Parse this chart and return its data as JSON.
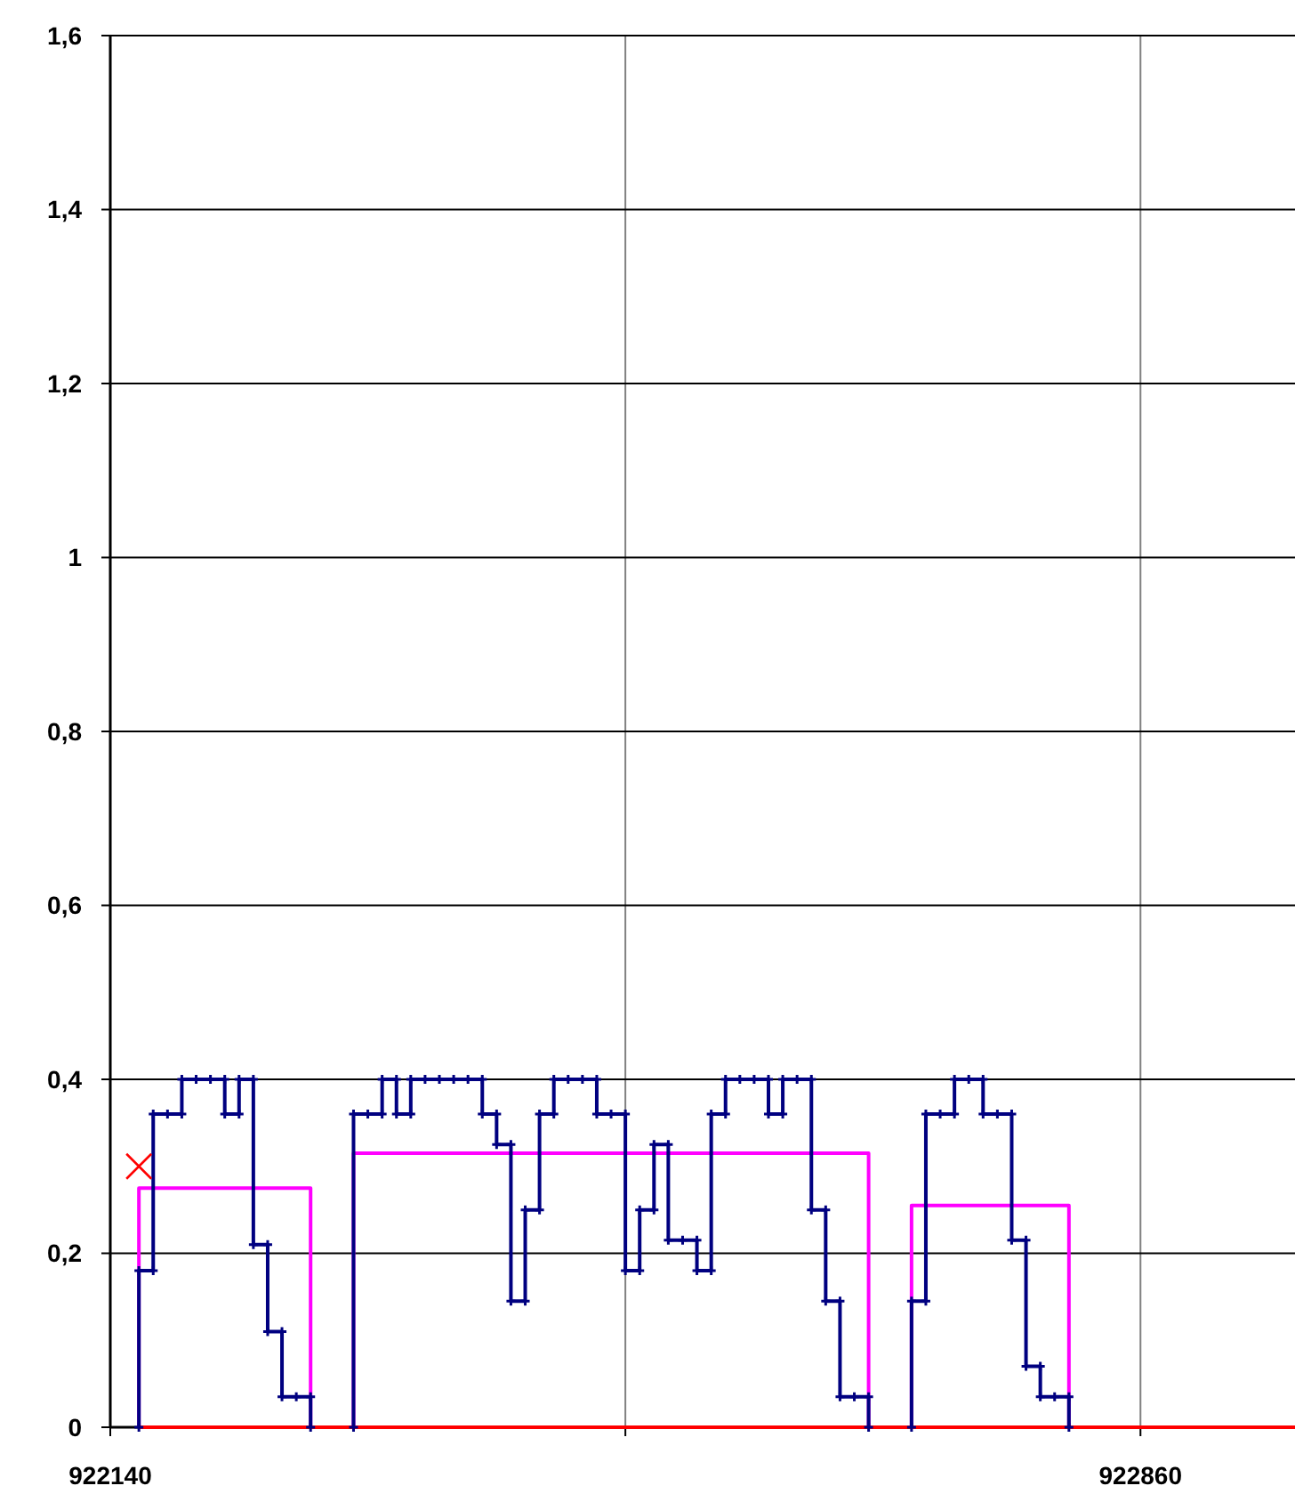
{
  "chart_data": {
    "type": "line",
    "xlim": [
      922140,
      922968
    ],
    "xticks": [
      922140,
      {
        "value": 922500,
        "label": null
      },
      922860
    ],
    "ylim": [
      0,
      1.6
    ],
    "yticks": [
      0,
      {
        "value": 0.2,
        "label": "0,2"
      },
      {
        "value": 0.4,
        "label": "0,4"
      },
      {
        "value": 0.6,
        "label": "0,6"
      },
      {
        "value": 0.8,
        "label": "0,8"
      },
      1,
      {
        "value": 1.2,
        "label": "1,2"
      },
      {
        "value": 1.4,
        "label": "1,4"
      },
      {
        "value": 1.6,
        "label": "1,6"
      }
    ],
    "grid": true,
    "series": [
      {
        "color": "#ff00ff",
        "marker": "none",
        "x": [
          922160,
          922160,
          922280,
          922280,
          922310,
          922310,
          922670,
          922670,
          922700,
          922700,
          922810,
          922810
        ],
        "values": [
          0,
          0.275,
          0.275,
          0,
          0,
          0.315,
          0.315,
          0,
          0,
          0.255,
          0.255,
          0
        ]
      },
      {
        "color": "#ff0000",
        "marker": "none",
        "x": [
          922160,
          922968
        ],
        "values": [
          0,
          0
        ]
      },
      {
        "color": "#000080",
        "marker": "cross",
        "x": [
          922160,
          922160,
          922170,
          922170,
          922180,
          922190,
          922190,
          922200,
          922210,
          922220,
          922220,
          922230,
          922230,
          922240,
          922240,
          922250,
          922250,
          922260,
          922260,
          922270,
          922280,
          922280,
          922295,
          922310,
          922310,
          922320,
          922330,
          922330,
          922340,
          922340,
          922350,
          922350,
          922360,
          922370,
          922380,
          922390,
          922400,
          922400,
          922410,
          922410,
          922420,
          922420,
          922430,
          922430,
          922440,
          922440,
          922450,
          922450,
          922460,
          922470,
          922480,
          922480,
          922490,
          922500,
          922500,
          922510,
          922510,
          922520,
          922520,
          922530,
          922530,
          922540,
          922550,
          922550,
          922560,
          922560,
          922570,
          922570,
          922580,
          922590,
          922600,
          922600,
          922610,
          922610,
          922620,
          922630,
          922630,
          922640,
          922640,
          922650,
          922650,
          922660,
          922670,
          922670,
          922685,
          922700,
          922700,
          922710,
          922710,
          922720,
          922730,
          922730,
          922740,
          922750,
          922750,
          922760,
          922770,
          922770,
          922780,
          922780,
          922790,
          922790,
          922800,
          922810,
          922810
        ],
        "values": [
          0,
          0.18,
          0.18,
          0.36,
          0.36,
          0.36,
          0.4,
          0.4,
          0.4,
          0.4,
          0.36,
          0.36,
          0.4,
          0.4,
          0.21,
          0.21,
          0.11,
          0.11,
          0.035,
          0.035,
          0.035,
          0,
          null,
          0,
          0.36,
          0.36,
          0.36,
          0.4,
          0.4,
          0.36,
          0.36,
          0.4,
          0.4,
          0.4,
          0.4,
          0.4,
          0.4,
          0.36,
          0.36,
          0.325,
          0.325,
          0.145,
          0.145,
          0.25,
          0.25,
          0.36,
          0.36,
          0.4,
          0.4,
          0.4,
          0.4,
          0.36,
          0.36,
          0.36,
          0.18,
          0.18,
          0.25,
          0.25,
          0.325,
          0.325,
          0.215,
          0.215,
          0.215,
          0.18,
          0.18,
          0.36,
          0.36,
          0.4,
          0.4,
          0.4,
          0.4,
          0.36,
          0.36,
          0.4,
          0.4,
          0.4,
          0.25,
          0.25,
          0.145,
          0.145,
          0.035,
          0.035,
          0.035,
          0,
          null,
          0,
          0.145,
          0.145,
          0.36,
          0.36,
          0.36,
          0.4,
          0.4,
          0.4,
          0.36,
          0.36,
          0.36,
          0.215,
          0.215,
          0.07,
          0.07,
          0.035,
          0.035,
          0.035,
          0
        ]
      },
      {
        "type": "scatter",
        "color": "#ff0000",
        "marker": "cross",
        "x": [
          922160
        ],
        "values": [
          0.3
        ]
      }
    ]
  }
}
